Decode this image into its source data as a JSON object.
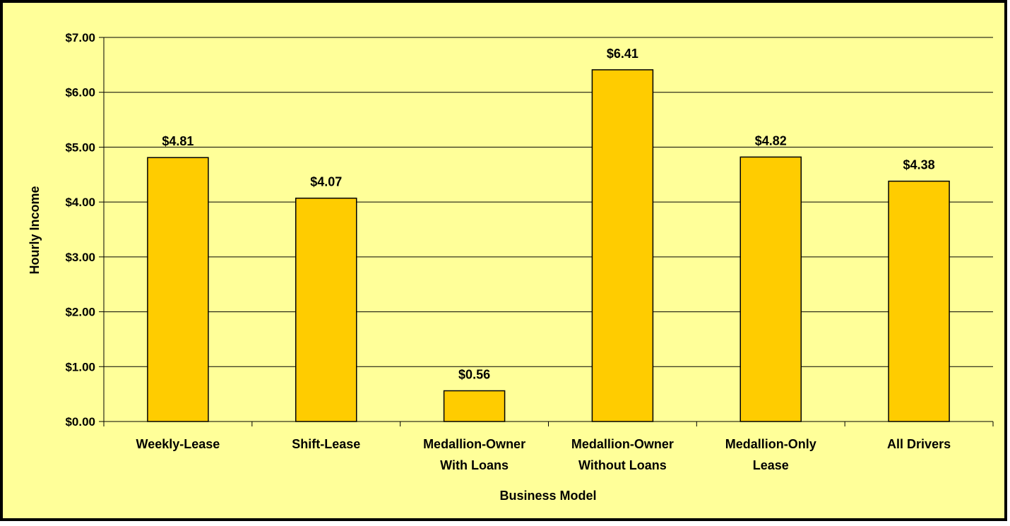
{
  "chart_data": {
    "type": "bar",
    "title": "",
    "xlabel": "Business Model",
    "ylabel": "Hourly Income",
    "categories": [
      [
        "Weekly-Lease"
      ],
      [
        "Shift-Lease"
      ],
      [
        "Medallion-Owner",
        "With Loans"
      ],
      [
        "Medallion-Owner",
        "Without Loans"
      ],
      [
        "Medallion-Only",
        "Lease"
      ],
      [
        "All Drivers"
      ]
    ],
    "values": [
      4.81,
      4.07,
      0.56,
      6.41,
      4.82,
      4.38
    ],
    "data_labels": [
      "$4.81",
      "$4.07",
      "$0.56",
      "$6.41",
      "$4.82",
      "$4.38"
    ],
    "ylim": [
      0,
      7
    ],
    "y_ticks": [
      0,
      1,
      2,
      3,
      4,
      5,
      6,
      7
    ],
    "y_tick_labels": [
      "$0.00",
      "$1.00",
      "$2.00",
      "$3.00",
      "$4.00",
      "$5.00",
      "$6.00",
      "$7.00"
    ],
    "grid": true,
    "legend": "none",
    "colors": {
      "background": "#FFFF99",
      "bar_fill": "#FFCC00",
      "bar_stroke": "#000000",
      "gridline": "#000000",
      "frame": "#000000"
    }
  }
}
